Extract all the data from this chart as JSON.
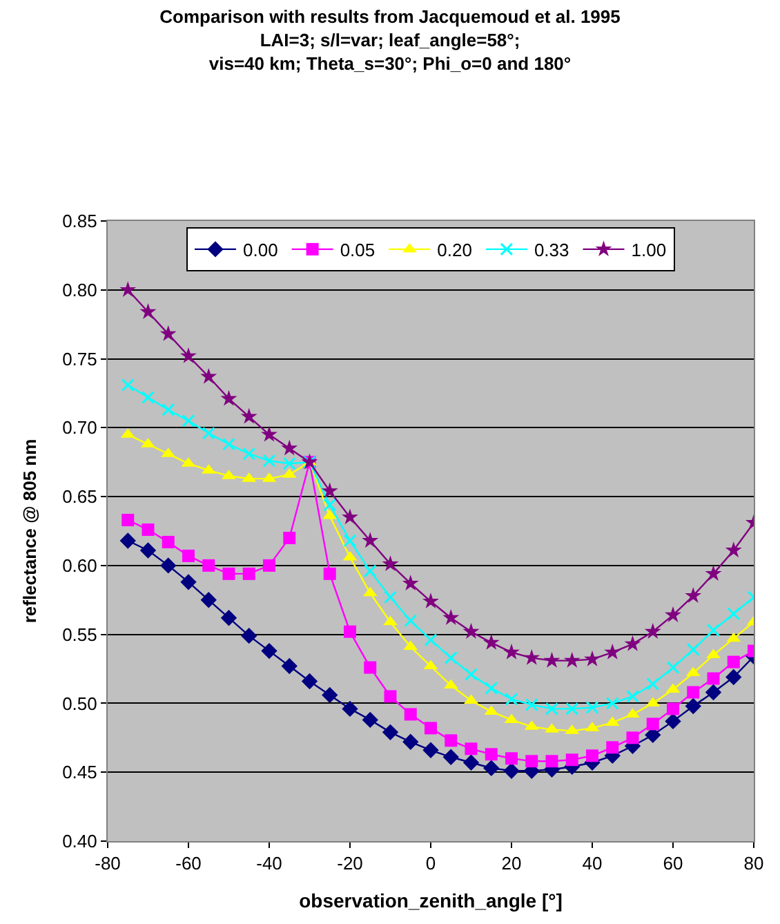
{
  "chart_data": {
    "type": "line",
    "title": "Comparison with results from Jacquemoud et al. 1995\nLAI=3; s/l=var; leaf_angle=58°;\nvis=40 km; Theta_s=30°; Phi_o=0 and 180°",
    "xlabel": "observation_zenith_angle [°]",
    "ylabel": "reflectance @ 805 nm",
    "x": [
      -75,
      -70,
      -65,
      -60,
      -55,
      -50,
      -45,
      -40,
      -35,
      -30,
      -25,
      -20,
      -15,
      -10,
      -5,
      0,
      5,
      10,
      15,
      20,
      25,
      30,
      35,
      40,
      45,
      50,
      55,
      60,
      65,
      70,
      75,
      80
    ],
    "series": [
      {
        "name": "0.00",
        "color": "#000080",
        "marker": "diamond",
        "values": [
          0.618,
          0.611,
          0.6,
          0.588,
          0.575,
          0.562,
          0.549,
          0.538,
          0.527,
          0.516,
          0.506,
          0.496,
          0.488,
          0.479,
          0.472,
          0.466,
          0.461,
          0.457,
          0.453,
          0.451,
          0.451,
          0.452,
          0.454,
          0.457,
          0.462,
          0.469,
          0.477,
          0.487,
          0.498,
          0.508,
          0.519,
          0.534
        ]
      },
      {
        "name": "0.05",
        "color": "#ff00ff",
        "marker": "square",
        "values": [
          0.633,
          0.626,
          0.617,
          0.607,
          0.6,
          0.594,
          0.594,
          0.6,
          0.62,
          0.675,
          0.594,
          0.552,
          0.526,
          0.505,
          0.492,
          0.482,
          0.473,
          0.467,
          0.463,
          0.46,
          0.458,
          0.458,
          0.459,
          0.462,
          0.468,
          0.475,
          0.485,
          0.496,
          0.508,
          0.518,
          0.53,
          0.538
        ]
      },
      {
        "name": "0.20",
        "color": "#ffff00",
        "marker": "triangle",
        "values": [
          0.695,
          0.688,
          0.681,
          0.674,
          0.669,
          0.665,
          0.663,
          0.663,
          0.666,
          0.675,
          0.636,
          0.606,
          0.58,
          0.559,
          0.541,
          0.527,
          0.513,
          0.502,
          0.494,
          0.488,
          0.483,
          0.481,
          0.48,
          0.482,
          0.486,
          0.492,
          0.5,
          0.51,
          0.522,
          0.535,
          0.547,
          0.559
        ]
      },
      {
        "name": "0.33",
        "color": "#00ffff",
        "marker": "cross",
        "values": [
          0.731,
          0.722,
          0.713,
          0.705,
          0.696,
          0.688,
          0.681,
          0.676,
          0.674,
          0.675,
          0.644,
          0.618,
          0.596,
          0.577,
          0.56,
          0.546,
          0.533,
          0.521,
          0.511,
          0.503,
          0.499,
          0.496,
          0.496,
          0.497,
          0.5,
          0.505,
          0.514,
          0.526,
          0.539,
          0.553,
          0.565,
          0.577
        ]
      },
      {
        "name": "1.00",
        "color": "#800080",
        "marker": "star",
        "values": [
          0.8,
          0.784,
          0.768,
          0.752,
          0.737,
          0.721,
          0.708,
          0.695,
          0.685,
          0.675,
          0.654,
          0.635,
          0.618,
          0.601,
          0.587,
          0.574,
          0.562,
          0.552,
          0.544,
          0.537,
          0.533,
          0.531,
          0.531,
          0.532,
          0.537,
          0.543,
          0.552,
          0.564,
          0.578,
          0.594,
          0.611,
          0.631
        ]
      }
    ],
    "xlim": [
      -80,
      80
    ],
    "xticks": [
      -80,
      -60,
      -40,
      -20,
      0,
      20,
      40,
      60,
      80
    ],
    "ylim": [
      0.4,
      0.85
    ],
    "yticks": [
      {
        "value": 0.4,
        "label": "0.40"
      },
      {
        "value": 0.45,
        "label": "0.45"
      },
      {
        "value": 0.5,
        "label": "0.50"
      },
      {
        "value": 0.55,
        "label": "0.55"
      },
      {
        "value": 0.6,
        "label": "0.60"
      },
      {
        "value": 0.65,
        "label": "0.65"
      },
      {
        "value": 0.7,
        "label": "0.70"
      },
      {
        "value": 0.75,
        "label": "0.75"
      },
      {
        "value": 0.8,
        "label": "0.80"
      },
      {
        "value": 0.85,
        "label": "0.85"
      }
    ],
    "grid": "y",
    "legend": "top",
    "line_style": "solid"
  }
}
